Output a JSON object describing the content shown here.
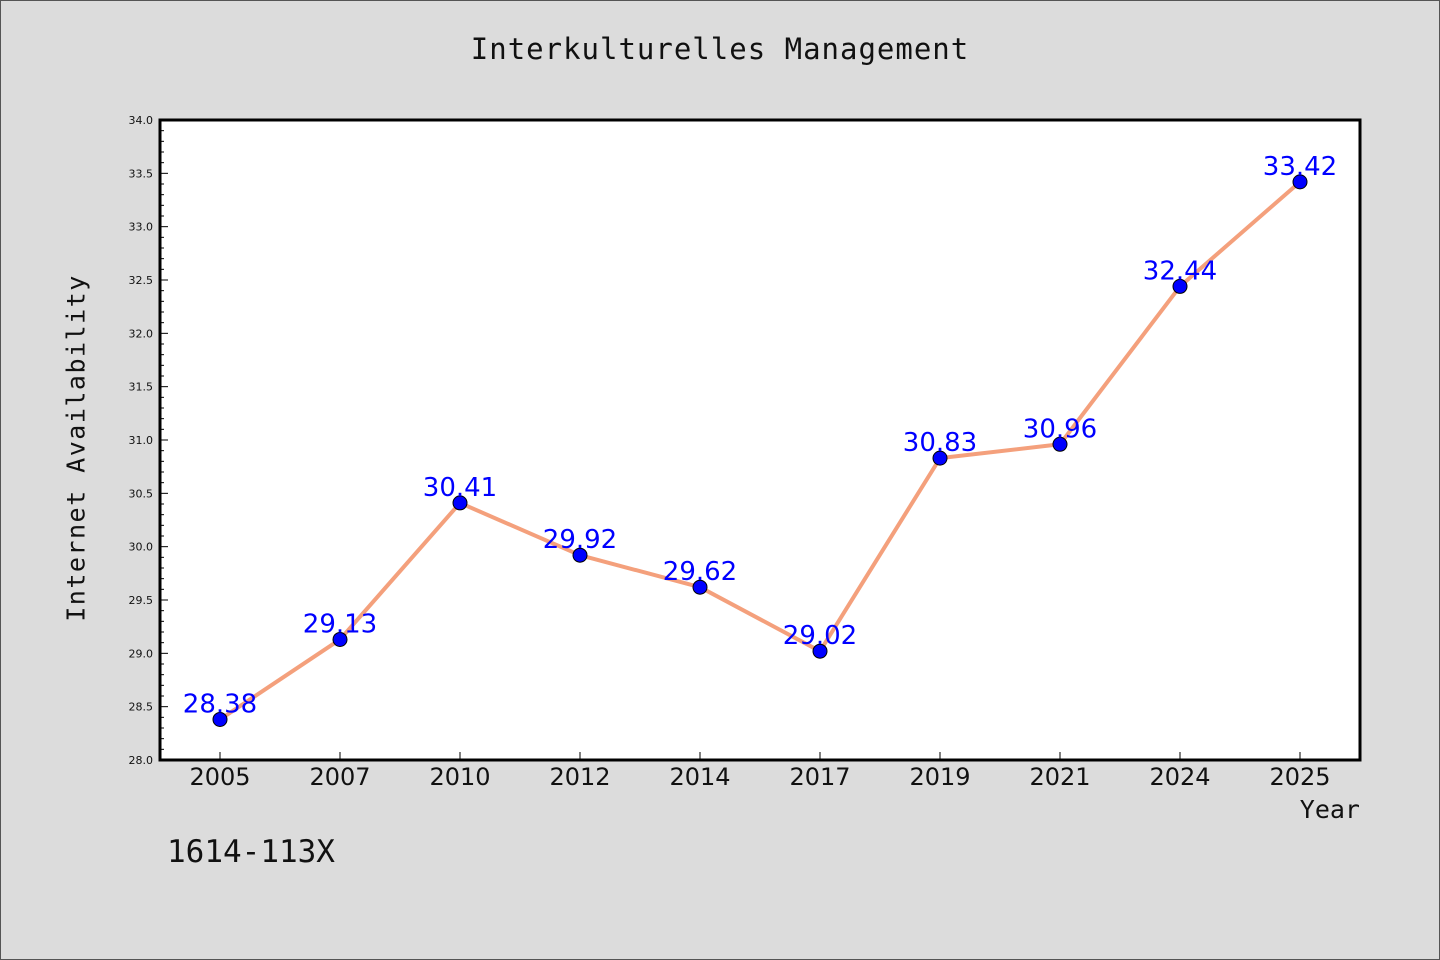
{
  "chart_data": {
    "type": "line",
    "title": "Interkulturelles Management",
    "xlabel": "Year",
    "ylabel": "Internet Availability",
    "categories": [
      "2005",
      "2007",
      "2010",
      "2012",
      "2014",
      "2017",
      "2019",
      "2021",
      "2024",
      "2025"
    ],
    "series": [
      {
        "values": [
          28.38,
          29.13,
          30.41,
          29.92,
          29.62,
          29.02,
          30.83,
          30.96,
          32.44,
          33.42
        ],
        "labels": [
          "28.38",
          "29.13",
          "30.41",
          "29.92",
          "29.62",
          "29.02",
          "30.83",
          "30.96",
          "32.44",
          "33.42"
        ]
      }
    ],
    "ylim": [
      28.0,
      34.0
    ],
    "yticks": [
      "28.0",
      "28.5",
      "29.0",
      "29.5",
      "30.0",
      "30.5",
      "31.0",
      "31.5",
      "32.0",
      "32.5",
      "33.0",
      "33.5",
      "34.0"
    ],
    "grid": false,
    "colors": {
      "line": "#f4a07c",
      "marker": "#0000ff",
      "label": "#0000ff",
      "background": "#dcdcdc",
      "plot_bg": "#ffffff"
    }
  },
  "footer": {
    "code": "1614-113X"
  }
}
